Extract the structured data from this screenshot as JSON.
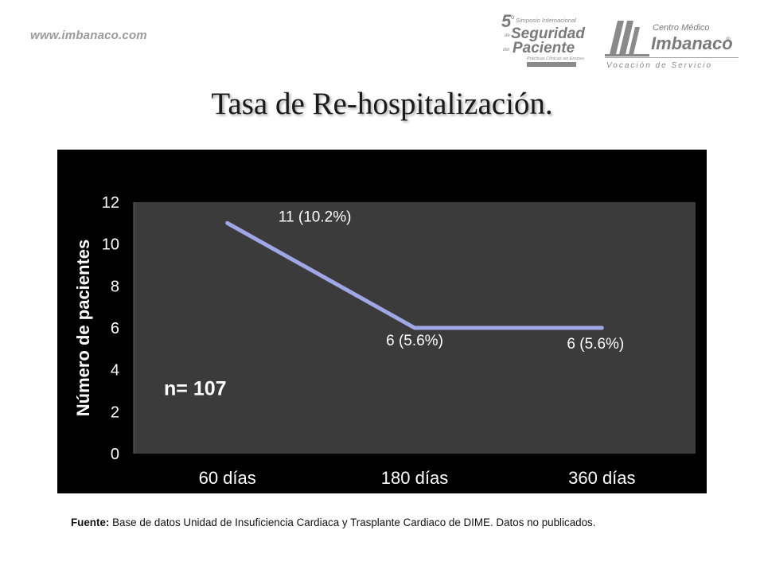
{
  "header": {
    "site_url": "www.imbanaco.com",
    "logo_symposium": {
      "num": "5",
      "sup": "o",
      "line1": "Simposio Internacional",
      "line2": "Seguridad",
      "line2_prefix": "de",
      "line3": "Paciente",
      "line3_prefix": "del",
      "line4": "Prácticas Clínicas sin Errores"
    },
    "logo_cmi": {
      "line1": "Centro Médico",
      "line2": "Imbanaco",
      "reg": "®",
      "line3": "Vocación de Servicio"
    }
  },
  "title": "Tasa de Re-hospitalización.",
  "chart_data": {
    "type": "line",
    "categories": [
      "60 días",
      "180 días",
      "360 días"
    ],
    "series": [
      {
        "values": [
          11,
          6,
          6
        ],
        "color": "#a0a6e6"
      }
    ],
    "data_labels": [
      "11 (10.2%)",
      "6 (5.6%)",
      "6 (5.6%)"
    ],
    "title": "",
    "xlabel": "",
    "ylabel": "Número de pacientes",
    "ylim": [
      0,
      12
    ],
    "yticks": [
      0,
      2,
      4,
      6,
      8,
      10,
      12
    ],
    "grid": false,
    "annotation": "n= 107",
    "plot_bg": "#3b3b3b",
    "chart_bg": "#000000"
  },
  "footer": {
    "source_label": "Fuente:",
    "source_text": " Base de datos Unidad de Insuficiencia Cardiaca y Trasplante Cardiaco de DIME. Datos no publicados."
  }
}
